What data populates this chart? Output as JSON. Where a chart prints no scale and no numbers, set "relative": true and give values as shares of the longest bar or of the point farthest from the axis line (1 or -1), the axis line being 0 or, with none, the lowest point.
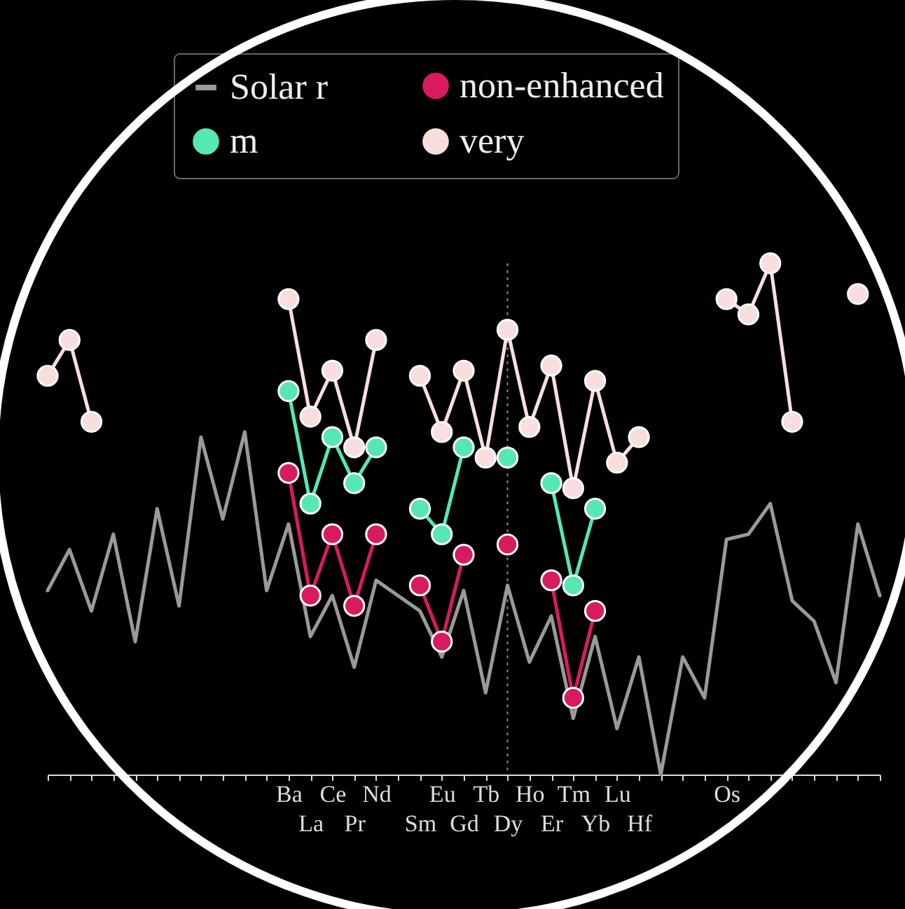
{
  "chart_data": {
    "type": "line",
    "relative": true,
    "marker": "circle",
    "legend": "top",
    "grid": false,
    "categories": [
      null,
      null,
      null,
      null,
      null,
      null,
      null,
      null,
      null,
      null,
      null,
      "Ba",
      "La",
      "Ce",
      "Pr",
      "Nd",
      null,
      "Sm",
      "Eu",
      "Gd",
      "Tb",
      "Dy",
      "Ho",
      "Er",
      "Tm",
      "Yb",
      "Lu",
      "Hf",
      null,
      null,
      null,
      "Os",
      null,
      null,
      null,
      null,
      null,
      null,
      null
    ],
    "series": [
      {
        "name": "Solar r",
        "color": "#9a9a9a",
        "marker": "none",
        "values": [
          0.36,
          0.44,
          0.32,
          0.47,
          0.26,
          0.52,
          0.33,
          0.66,
          0.5,
          0.67,
          0.36,
          0.49,
          0.27,
          0.35,
          0.21,
          0.38,
          0.35,
          0.32,
          0.23,
          0.36,
          0.16,
          0.37,
          0.22,
          0.31,
          0.11,
          0.27,
          0.09,
          0.23,
          0,
          0.23,
          0.15,
          0.46,
          0.47,
          0.53,
          0.34,
          0.3,
          0.18,
          0.49,
          0.35
        ]
      },
      {
        "name": "m",
        "color": "#55e8b2",
        "values": [
          null,
          null,
          null,
          null,
          null,
          null,
          null,
          null,
          null,
          null,
          null,
          0.75,
          0.53,
          0.66,
          0.57,
          0.64,
          null,
          0.52,
          0.47,
          0.64,
          null,
          0.62,
          null,
          0.57,
          0.37,
          0.52,
          null,
          null,
          null,
          null,
          null,
          null,
          null,
          null,
          null,
          null,
          null,
          null,
          null
        ]
      },
      {
        "name": "non-enhanced",
        "color": "#d81b60",
        "values": [
          null,
          null,
          null,
          null,
          null,
          null,
          null,
          null,
          null,
          null,
          null,
          0.59,
          0.35,
          0.47,
          0.33,
          0.47,
          null,
          0.37,
          0.26,
          0.43,
          null,
          0.45,
          null,
          0.38,
          0.15,
          0.32,
          null,
          null,
          null,
          null,
          null,
          null,
          null,
          null,
          null,
          null,
          null,
          null,
          null
        ]
      },
      {
        "name": "very",
        "color": "#f8dede",
        "values": [
          0.78,
          0.85,
          0.69,
          null,
          null,
          null,
          null,
          null,
          null,
          null,
          null,
          0.93,
          0.7,
          0.79,
          0.64,
          0.85,
          null,
          0.78,
          0.67,
          0.79,
          0.62,
          0.87,
          0.68,
          0.8,
          0.56,
          0.77,
          0.61,
          0.66,
          null,
          null,
          null,
          0.93,
          0.9,
          1.0,
          0.69,
          null,
          null,
          0.94,
          null
        ]
      }
    ],
    "ref_lines": [
      {
        "axis": "x",
        "value": "Dy",
        "color": "#8a8a8a",
        "line_style": "dotted"
      }
    ]
  }
}
